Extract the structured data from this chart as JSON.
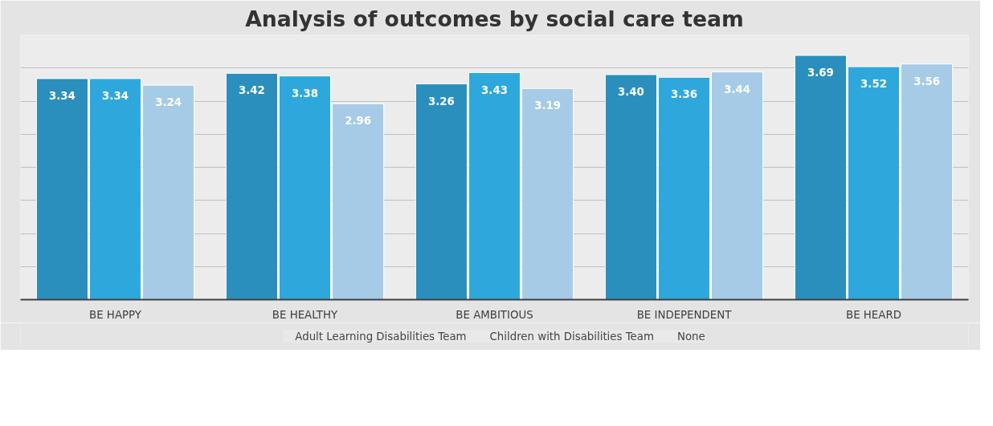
{
  "chart_data": {
    "type": "bar",
    "title": "Analysis of outcomes by social care team",
    "categories": [
      "BE HAPPY",
      "BE HEALTHY",
      "BE AMBITIOUS",
      "BE INDEPENDENT",
      "BE HEARD"
    ],
    "series": [
      {
        "name": "Adult Learning Disabilities Team",
        "color": "#2b8fbe",
        "values": [
          3.34,
          3.42,
          3.26,
          3.4,
          3.69
        ],
        "value_labels": [
          "3.34",
          "3.42",
          "3.26",
          "3.40",
          "3.69"
        ]
      },
      {
        "name": "Children with Disabilities Team",
        "color": "#2ea8dc",
        "values": [
          3.34,
          3.38,
          3.43,
          3.36,
          3.52
        ],
        "value_labels": [
          "3.34",
          "3.38",
          "3.43",
          "3.36",
          "3.52"
        ]
      },
      {
        "name": "None",
        "color": "#a6cbe6",
        "values": [
          3.24,
          2.96,
          3.19,
          3.44,
          3.56
        ],
        "value_labels": [
          "3.24",
          "2.96",
          "3.19",
          "3.44",
          "3.56"
        ]
      }
    ],
    "ylim": [
      0,
      4
    ],
    "yticks": [
      {
        "value": 0,
        "label": null
      },
      {
        "value": 0.5,
        "label": null
      },
      {
        "value": 1,
        "label": null
      },
      {
        "value": 1.5,
        "label": null
      },
      {
        "value": 2,
        "label": null
      },
      {
        "value": 2.5,
        "label": null
      },
      {
        "value": 3,
        "label": null
      },
      {
        "value": 3.5,
        "label": null
      },
      {
        "value": 4,
        "label": null
      }
    ],
    "tick_labels": "x",
    "grid": "y",
    "data_labels": true,
    "legend": "bottom"
  }
}
